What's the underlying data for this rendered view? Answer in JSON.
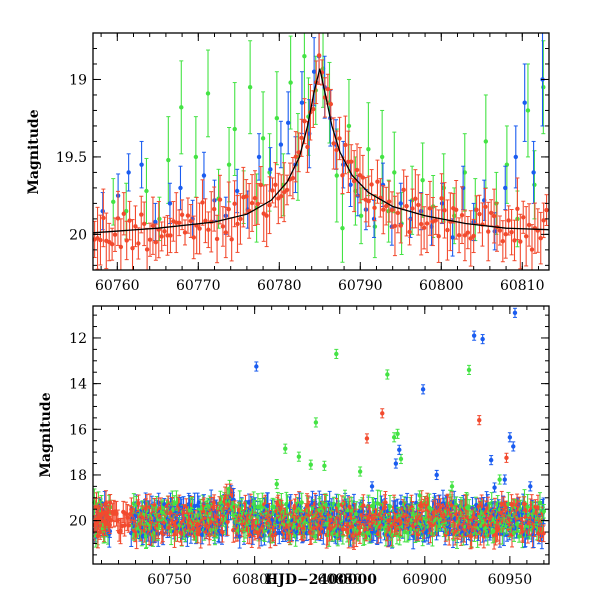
{
  "chart_data": [
    {
      "type": "scatter",
      "title": "",
      "xlabel": "",
      "ylabel": "Magnitude",
      "xlim": [
        60757,
        60813.3
      ],
      "ylim": [
        20.23,
        18.7
      ],
      "y_inverted": true,
      "xticks": [
        60760,
        60770,
        60780,
        60790,
        60800,
        60810
      ],
      "yticks": [
        19,
        19.5,
        20
      ],
      "xticklabels": [
        "60760",
        "60770",
        "60780",
        "60790",
        "60800",
        "60810"
      ],
      "yticklabels": [
        "19",
        "19.5",
        "20"
      ],
      "series": [
        {
          "name": "green",
          "color": "#44e344",
          "marker": "point-with-errorbar"
        },
        {
          "name": "blue",
          "color": "#1a5cf0",
          "marker": "point-with-errorbar"
        },
        {
          "name": "red",
          "color": "#f24a2e",
          "marker": "point-with-errorbar"
        },
        {
          "name": "model",
          "color": "#000000",
          "marker": "line"
        }
      ],
      "model_curve": {
        "x": [
          60757,
          60765,
          60772,
          60776,
          60779,
          60781,
          60782.5,
          60783.5,
          60784.3,
          60785,
          60785.7,
          60786.5,
          60787.5,
          60789,
          60791,
          60794,
          60798,
          60803,
          60808,
          60813.3
        ],
        "y": [
          19.99,
          19.96,
          19.92,
          19.87,
          19.78,
          19.66,
          19.5,
          19.3,
          19.08,
          18.93,
          19.1,
          19.3,
          19.47,
          19.62,
          19.73,
          19.82,
          19.88,
          19.93,
          19.96,
          19.97
        ]
      },
      "observations": {
        "green": [
          [
            60759.5,
            19.79,
            0.15
          ],
          [
            60761.1,
            19.85,
            0.18
          ],
          [
            60763.6,
            19.72,
            0.21
          ],
          [
            60765.2,
            19.9,
            0.14
          ],
          [
            60766.3,
            19.52,
            0.28
          ],
          [
            60767.9,
            19.18,
            0.3
          ],
          [
            60769.7,
            19.5,
            0.26
          ],
          [
            60771.2,
            19.09,
            0.28
          ],
          [
            60772.5,
            19.77,
            0.19
          ],
          [
            60773.8,
            19.55,
            0.24
          ],
          [
            60774.5,
            19.32,
            0.3
          ],
          [
            60775.6,
            19.76,
            0.17
          ],
          [
            60776.4,
            19.05,
            0.3
          ],
          [
            60777.2,
            19.83,
            0.22
          ],
          [
            60778,
            19.38,
            0.3
          ],
          [
            60778.8,
            19.6,
            0.25
          ],
          [
            60779.7,
            19.25,
            0.3
          ],
          [
            60780.5,
            19.68,
            0.2
          ],
          [
            60781.4,
            19.02,
            0.3
          ],
          [
            60782.3,
            19.5,
            0.28
          ],
          [
            60783.1,
            18.85,
            0.3
          ],
          [
            60783.6,
            19.24,
            0.25
          ],
          [
            60784.5,
            19.07,
            0.22
          ],
          [
            60785.4,
            18.93,
            0.25
          ],
          [
            60786.2,
            19.15,
            0.26
          ],
          [
            60787.1,
            19.62,
            0.3
          ],
          [
            60787.8,
            19.96,
            0.22
          ],
          [
            60788.6,
            19.3,
            0.3
          ],
          [
            60789.4,
            19.72,
            0.22
          ],
          [
            60790.1,
            19.88,
            0.18
          ],
          [
            60791,
            19.45,
            0.3
          ],
          [
            60791.8,
            19.95,
            0.2
          ],
          [
            60792.7,
            19.5,
            0.3
          ],
          [
            60793.5,
            19.85,
            0.2
          ],
          [
            60794.2,
            19.6,
            0.26
          ],
          [
            60795.1,
            19.93,
            0.2
          ],
          [
            60796.4,
            19.78,
            0.22
          ],
          [
            60797.7,
            19.65,
            0.24
          ],
          [
            60799,
            19.82,
            0.2
          ],
          [
            60800.3,
            19.7,
            0.22
          ],
          [
            60801.6,
            19.88,
            0.18
          ],
          [
            60802.9,
            19.6,
            0.25
          ],
          [
            60804.2,
            19.84,
            0.2
          ],
          [
            60805.5,
            19.4,
            0.3
          ],
          [
            60806.8,
            19.8,
            0.2
          ],
          [
            60808.1,
            19.55,
            0.25
          ],
          [
            60809.4,
            19.9,
            0.18
          ],
          [
            60810.7,
            19.2,
            0.3
          ],
          [
            60811.5,
            19.68,
            0.22
          ],
          [
            60812.6,
            19.05,
            0.3
          ]
        ],
        "blue": [
          [
            60758.2,
            19.85,
            0.12
          ],
          [
            60760.1,
            19.75,
            0.14
          ],
          [
            60761.4,
            19.6,
            0.12
          ],
          [
            60763,
            19.55,
            0.15
          ],
          [
            60764.7,
            19.92,
            0.12
          ],
          [
            60766.5,
            19.8,
            0.13
          ],
          [
            60767.8,
            19.7,
            0.14
          ],
          [
            60769.3,
            19.9,
            0.12
          ],
          [
            60770.7,
            19.62,
            0.15
          ],
          [
            60772,
            19.78,
            0.13
          ],
          [
            60773.4,
            19.88,
            0.12
          ],
          [
            60774.8,
            19.72,
            0.14
          ],
          [
            60776.1,
            19.84,
            0.12
          ],
          [
            60777.5,
            19.5,
            0.15
          ],
          [
            60778.9,
            19.58,
            0.14
          ],
          [
            60780.2,
            19.42,
            0.15
          ],
          [
            60781.1,
            19.28,
            0.2
          ],
          [
            60782,
            19.55,
            0.18
          ],
          [
            60782.8,
            19.15,
            0.2
          ],
          [
            60783.7,
            19.35,
            0.22
          ],
          [
            60784.3,
            18.95,
            0.22
          ],
          [
            60784.9,
            18.85,
            0.18
          ],
          [
            60785.6,
            19.05,
            0.2
          ],
          [
            60786.3,
            19.25,
            0.18
          ],
          [
            60787,
            19.42,
            0.16
          ],
          [
            60787.9,
            19.55,
            0.15
          ],
          [
            60788.8,
            19.68,
            0.14
          ],
          [
            60789.7,
            19.75,
            0.13
          ],
          [
            60790.7,
            19.84,
            0.13
          ],
          [
            60791.7,
            19.9,
            0.12
          ],
          [
            60792.8,
            19.68,
            0.14
          ],
          [
            60793.9,
            19.95,
            0.12
          ],
          [
            60795,
            19.8,
            0.13
          ],
          [
            60796.2,
            19.9,
            0.12
          ],
          [
            60797.5,
            19.85,
            0.12
          ],
          [
            60798.8,
            19.95,
            0.12
          ],
          [
            60800.1,
            19.8,
            0.13
          ],
          [
            60801.4,
            20.02,
            0.12
          ],
          [
            60802.7,
            19.7,
            0.14
          ],
          [
            60804,
            19.92,
            0.12
          ],
          [
            60805.3,
            19.78,
            0.13
          ],
          [
            60806.6,
            19.98,
            0.12
          ],
          [
            60807.9,
            19.7,
            0.14
          ],
          [
            60809.2,
            19.5,
            0.2
          ],
          [
            60810.3,
            19.15,
            0.25
          ],
          [
            60811.4,
            19.6,
            0.2
          ],
          [
            60812.5,
            19.0,
            0.3
          ]
        ],
        "red_seed": [
          60757.2,
          60813.2,
          0.36,
          19.95
        ]
      }
    },
    {
      "type": "scatter",
      "title": "",
      "xlabel": "HJD−2400000",
      "ylabel": "Magnitude",
      "xlim": [
        60705,
        60973
      ],
      "ylim": [
        21.9,
        10.6
      ],
      "y_inverted": true,
      "xticks": [
        60750,
        60800,
        60850,
        60900,
        60950
      ],
      "yticks": [
        12,
        14,
        16,
        18,
        20
      ],
      "xticklabels": [
        "60750",
        "60800",
        "60850",
        "60900",
        "60950"
      ],
      "yticklabels": [
        "12",
        "14",
        "16",
        "18",
        "20"
      ],
      "series": [
        {
          "name": "green",
          "color": "#44e344",
          "marker": "point-with-errorbar"
        },
        {
          "name": "blue",
          "color": "#1a5cf0",
          "marker": "point-with-errorbar"
        },
        {
          "name": "red",
          "color": "#f24a2e",
          "marker": "point-with-errorbar"
        }
      ],
      "outliers": {
        "green": [
          [
            60813,
            18.4
          ],
          [
            60818,
            16.85
          ],
          [
            60826,
            17.2
          ],
          [
            60833,
            17.55
          ],
          [
            60836,
            15.7
          ],
          [
            60841,
            17.6
          ],
          [
            60848,
            12.7
          ],
          [
            60862,
            17.85
          ],
          [
            60878,
            13.6
          ],
          [
            60882,
            16.35
          ],
          [
            60884,
            16.2
          ],
          [
            60886,
            17.3
          ],
          [
            60897,
            18.9
          ],
          [
            60916,
            18.5
          ],
          [
            60926,
            13.4
          ],
          [
            60944,
            18.2
          ]
        ],
        "blue": [
          [
            60801,
            13.25
          ],
          [
            60899,
            14.25
          ],
          [
            60907,
            18.0
          ],
          [
            60885,
            16.9
          ],
          [
            60883,
            17.5
          ],
          [
            60869,
            18.5
          ],
          [
            60934,
            12.05
          ],
          [
            60941,
            18.55
          ],
          [
            60939,
            17.35
          ],
          [
            60947,
            18.2
          ],
          [
            60950,
            16.35
          ],
          [
            60952,
            16.75
          ],
          [
            60953,
            10.9
          ],
          [
            60962,
            18.5
          ],
          [
            60929,
            11.9
          ]
        ],
        "red": [
          [
            60875,
            15.3
          ],
          [
            60866,
            16.4
          ],
          [
            60932,
            15.6
          ],
          [
            60948,
            17.25
          ]
        ]
      },
      "baseline_seed": [
        60706,
        60970,
        0.6,
        19.95
      ]
    }
  ]
}
